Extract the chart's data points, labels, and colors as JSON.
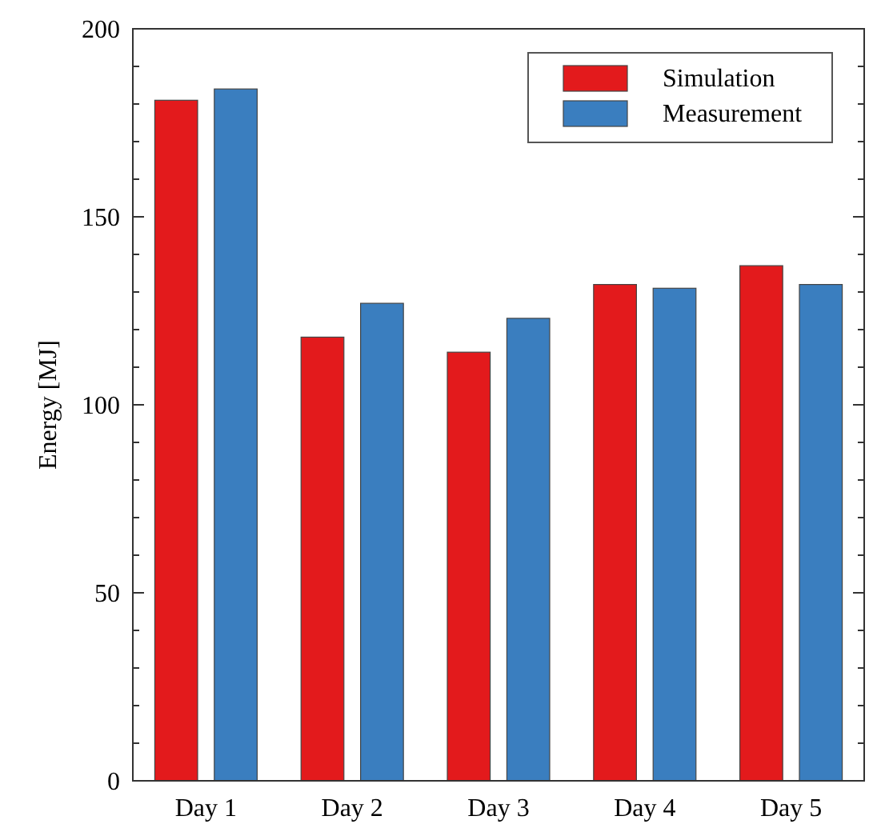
{
  "chart_data": {
    "type": "bar",
    "ylabel": "Energy [MJ]",
    "categories": [
      "Day 1",
      "Day 2",
      "Day 3",
      "Day 4",
      "Day 5"
    ],
    "series": [
      {
        "name": "Simulation",
        "color": "#e31a1c",
        "values": [
          181,
          118,
          114,
          132,
          137
        ]
      },
      {
        "name": "Measurement",
        "color": "#3a7ebf",
        "values": [
          184,
          127,
          123,
          131,
          132
        ]
      }
    ],
    "ylim": [
      0,
      200
    ],
    "yticks": [
      0,
      {
        "value": 10,
        "label": null
      },
      {
        "value": 20,
        "label": null
      },
      {
        "value": 30,
        "label": null
      },
      {
        "value": 40,
        "label": null
      },
      50,
      {
        "value": 60,
        "label": null
      },
      {
        "value": 70,
        "label": null
      },
      {
        "value": 80,
        "label": null
      },
      {
        "value": 90,
        "label": null
      },
      100,
      {
        "value": 110,
        "label": null
      },
      {
        "value": 120,
        "label": null
      },
      {
        "value": 130,
        "label": null
      },
      {
        "value": 140,
        "label": null
      },
      150,
      {
        "value": 160,
        "label": null
      },
      {
        "value": 170,
        "label": null
      },
      {
        "value": 180,
        "label": null
      },
      {
        "value": 190,
        "label": null
      },
      200
    ],
    "grid": false,
    "legend": "top right"
  }
}
